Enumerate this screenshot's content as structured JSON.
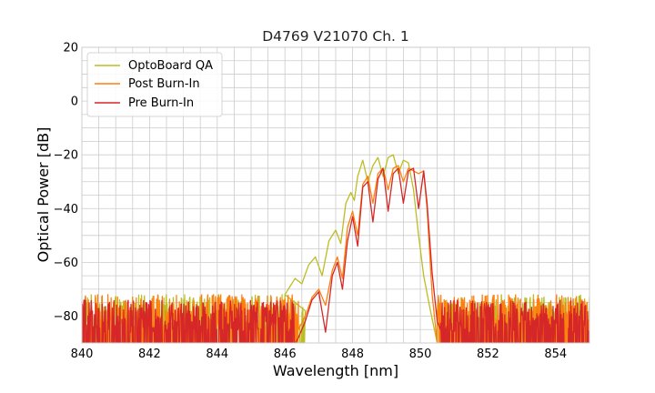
{
  "chart_data": {
    "type": "line",
    "title": "D4769 V21070 Ch. 1",
    "xlabel": "Wavelength [nm]",
    "ylabel": "Optical Power [dB]",
    "xlim": [
      840,
      855
    ],
    "ylim": [
      -90,
      20
    ],
    "xticks": [
      840,
      842,
      844,
      846,
      848,
      850,
      852,
      854
    ],
    "yticks": [
      20,
      0,
      -20,
      -40,
      -60,
      -80
    ],
    "grid": true,
    "legend_position": "top-left",
    "series": [
      {
        "name": "OptoBoard QA",
        "color": "#bcbd22",
        "noise_floor": -80,
        "noise_range": [
          840,
          846.6
        ],
        "noise_range2": [
          850.5,
          855
        ],
        "points": [
          [
            846.0,
            -72
          ],
          [
            846.3,
            -66
          ],
          [
            846.5,
            -68
          ],
          [
            846.7,
            -61
          ],
          [
            846.9,
            -58
          ],
          [
            847.1,
            -65
          ],
          [
            847.3,
            -52
          ],
          [
            847.5,
            -48
          ],
          [
            847.65,
            -53
          ],
          [
            847.8,
            -38
          ],
          [
            847.95,
            -34
          ],
          [
            848.05,
            -37
          ],
          [
            848.15,
            -28
          ],
          [
            848.3,
            -22
          ],
          [
            848.45,
            -30
          ],
          [
            848.6,
            -24
          ],
          [
            848.75,
            -21
          ],
          [
            848.9,
            -28
          ],
          [
            849.05,
            -21
          ],
          [
            849.2,
            -20
          ],
          [
            849.35,
            -27
          ],
          [
            849.5,
            -22
          ],
          [
            849.65,
            -23
          ],
          [
            849.8,
            -33
          ],
          [
            849.95,
            -50
          ],
          [
            850.1,
            -65
          ],
          [
            850.3,
            -78
          ],
          [
            850.5,
            -90
          ]
        ]
      },
      {
        "name": "Post Burn-In",
        "color": "#ff7f0e",
        "noise_floor": -80,
        "noise_range": [
          840,
          846.4
        ],
        "noise_range2": [
          850.5,
          855
        ],
        "points": [
          [
            846.4,
            -85
          ],
          [
            846.6,
            -80
          ],
          [
            846.8,
            -73
          ],
          [
            847.0,
            -70
          ],
          [
            847.2,
            -76
          ],
          [
            847.4,
            -63
          ],
          [
            847.55,
            -58
          ],
          [
            847.7,
            -66
          ],
          [
            847.85,
            -47
          ],
          [
            848.0,
            -41
          ],
          [
            848.15,
            -50
          ],
          [
            848.3,
            -31
          ],
          [
            848.45,
            -28
          ],
          [
            848.6,
            -38
          ],
          [
            848.75,
            -27
          ],
          [
            848.9,
            -25
          ],
          [
            849.05,
            -33
          ],
          [
            849.2,
            -25
          ],
          [
            849.35,
            -24
          ],
          [
            849.5,
            -30
          ],
          [
            849.65,
            -25
          ],
          [
            849.8,
            -26
          ],
          [
            849.95,
            -27
          ],
          [
            850.1,
            -26
          ],
          [
            850.2,
            -40
          ],
          [
            850.35,
            -72
          ],
          [
            850.5,
            -90
          ]
        ]
      },
      {
        "name": "Pre Burn-In",
        "color": "#d62728",
        "noise_floor": -82,
        "noise_range": [
          840,
          846.3
        ],
        "noise_range2": [
          850.6,
          855
        ],
        "points": [
          [
            846.4,
            -88
          ],
          [
            846.6,
            -82
          ],
          [
            846.8,
            -74
          ],
          [
            847.0,
            -71
          ],
          [
            847.2,
            -86
          ],
          [
            847.4,
            -65
          ],
          [
            847.55,
            -60
          ],
          [
            847.7,
            -70
          ],
          [
            847.85,
            -52
          ],
          [
            848.0,
            -43
          ],
          [
            848.15,
            -54
          ],
          [
            848.3,
            -32
          ],
          [
            848.45,
            -30
          ],
          [
            848.6,
            -45
          ],
          [
            848.75,
            -29
          ],
          [
            848.9,
            -25
          ],
          [
            849.05,
            -41
          ],
          [
            849.2,
            -27
          ],
          [
            849.35,
            -25
          ],
          [
            849.5,
            -38
          ],
          [
            849.65,
            -26
          ],
          [
            849.8,
            -25
          ],
          [
            849.95,
            -40
          ],
          [
            850.1,
            -26
          ],
          [
            850.2,
            -38
          ],
          [
            850.35,
            -64
          ],
          [
            850.5,
            -82
          ],
          [
            850.6,
            -85
          ]
        ]
      }
    ]
  }
}
